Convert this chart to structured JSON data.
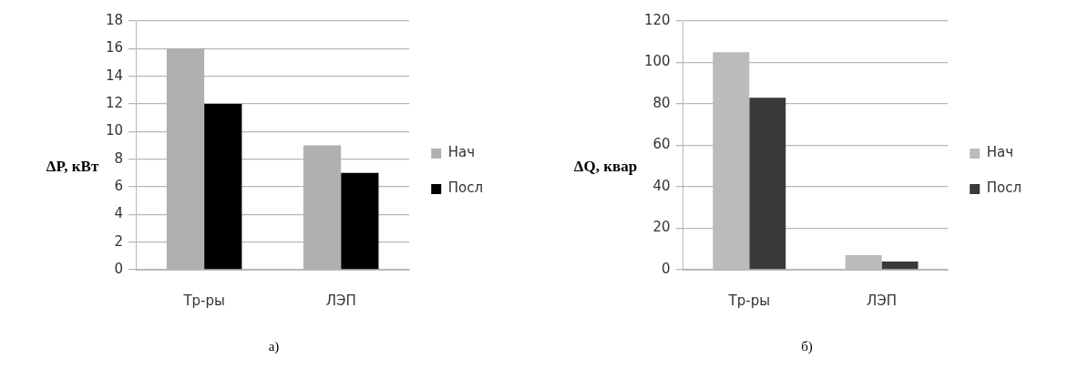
{
  "chart_data": [
    {
      "type": "bar",
      "ylabel": "ΔP, кВт",
      "categories": [
        "Тр-ры",
        "ЛЭП"
      ],
      "series": [
        {
          "name": "Нач",
          "color": "#b0b0b0",
          "values": [
            16,
            9
          ]
        },
        {
          "name": "Посл",
          "color": "#000000",
          "values": [
            12,
            7
          ]
        }
      ],
      "ylim": [
        0,
        18
      ],
      "yticks": [
        0,
        2,
        4,
        6,
        8,
        10,
        12,
        14,
        16,
        18
      ],
      "grid": "y",
      "legend": "right",
      "annotations": [
        "а)"
      ]
    },
    {
      "type": "bar",
      "ylabel": "ΔQ, квар",
      "categories": [
        "Тр-ры",
        "ЛЭП"
      ],
      "series": [
        {
          "name": "Нач",
          "color": "#bbbbbb",
          "values": [
            105,
            7
          ]
        },
        {
          "name": "Посл",
          "color": "#3a3a3a",
          "values": [
            83,
            4
          ]
        }
      ],
      "ylim": [
        0,
        120
      ],
      "yticks": [
        0,
        20,
        40,
        60,
        80,
        100,
        120
      ],
      "grid": "y",
      "legend": "right",
      "annotations": [
        "б)"
      ]
    }
  ]
}
